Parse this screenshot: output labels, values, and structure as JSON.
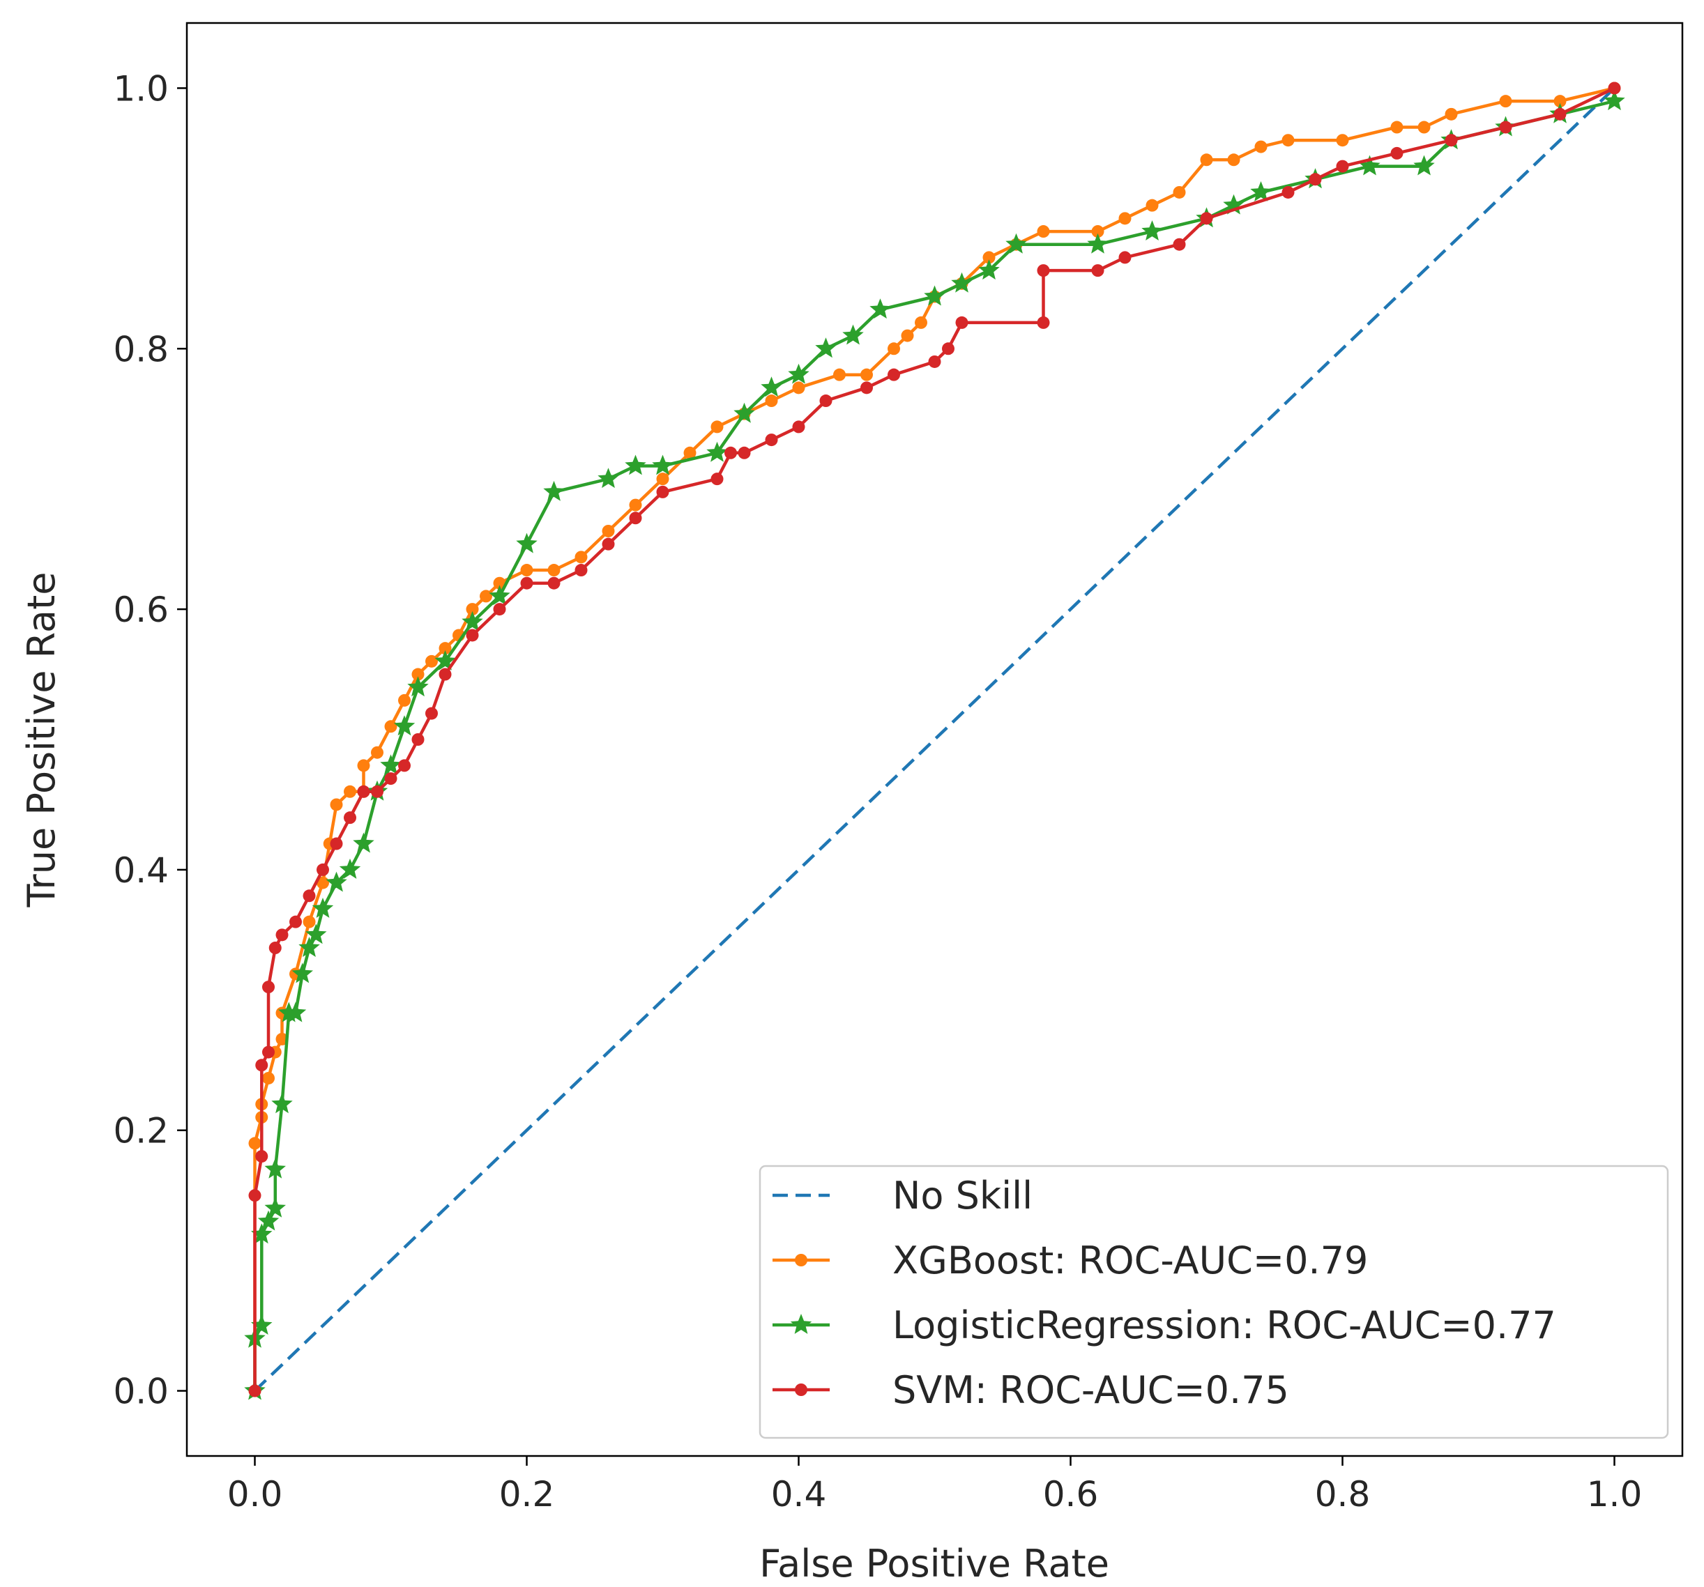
{
  "chart_data": {
    "type": "line",
    "title": "",
    "xlabel": "False Positive Rate",
    "ylabel": "True Positive Rate",
    "xlim": [
      -0.05,
      1.05
    ],
    "ylim": [
      -0.05,
      1.05
    ],
    "xticks": [
      0.0,
      0.2,
      0.4,
      0.6,
      0.8,
      1.0
    ],
    "xtick_labels": [
      "0.0",
      "0.2",
      "0.4",
      "0.6",
      "0.8",
      "1.0"
    ],
    "yticks": [
      0.0,
      0.2,
      0.4,
      0.6,
      0.8,
      1.0
    ],
    "ytick_labels": [
      "0.0",
      "0.2",
      "0.4",
      "0.6",
      "0.8",
      "1.0"
    ],
    "legend_position": "lower-right",
    "series": [
      {
        "name": "No Skill",
        "color": "#1f77b4",
        "style": "dashed",
        "marker": "none",
        "x": [
          0,
          1
        ],
        "y": [
          0,
          1
        ]
      },
      {
        "name": "XGBoost: ROC-AUC=0.79",
        "color": "#ff7f0e",
        "style": "solid",
        "marker": "dot",
        "x": [
          0,
          0,
          0.005,
          0.005,
          0.01,
          0.015,
          0.02,
          0.02,
          0.03,
          0.04,
          0.05,
          0.055,
          0.06,
          0.07,
          0.08,
          0.08,
          0.09,
          0.1,
          0.11,
          0.12,
          0.13,
          0.14,
          0.15,
          0.16,
          0.17,
          0.18,
          0.2,
          0.22,
          0.24,
          0.26,
          0.28,
          0.3,
          0.32,
          0.34,
          0.36,
          0.38,
          0.4,
          0.43,
          0.45,
          0.47,
          0.48,
          0.49,
          0.5,
          0.52,
          0.54,
          0.56,
          0.58,
          0.62,
          0.64,
          0.66,
          0.68,
          0.7,
          0.72,
          0.74,
          0.76,
          0.8,
          0.84,
          0.86,
          0.88,
          0.92,
          0.96,
          1.0
        ],
        "y": [
          0,
          0.19,
          0.21,
          0.22,
          0.24,
          0.26,
          0.27,
          0.29,
          0.32,
          0.36,
          0.39,
          0.42,
          0.45,
          0.46,
          0.46,
          0.48,
          0.49,
          0.51,
          0.53,
          0.55,
          0.56,
          0.57,
          0.58,
          0.6,
          0.61,
          0.62,
          0.63,
          0.63,
          0.64,
          0.66,
          0.68,
          0.7,
          0.72,
          0.74,
          0.75,
          0.76,
          0.77,
          0.78,
          0.78,
          0.8,
          0.81,
          0.82,
          0.84,
          0.85,
          0.87,
          0.88,
          0.89,
          0.89,
          0.9,
          0.91,
          0.92,
          0.945,
          0.945,
          0.955,
          0.96,
          0.96,
          0.97,
          0.97,
          0.98,
          0.99,
          0.99,
          1.0
        ]
      },
      {
        "name": "LogisticRegression: ROC-AUC=0.77",
        "color": "#2ca02c",
        "style": "solid",
        "marker": "star",
        "x": [
          0,
          0,
          0.005,
          0.005,
          0.01,
          0.015,
          0.015,
          0.02,
          0.025,
          0.03,
          0.035,
          0.04,
          0.045,
          0.05,
          0.06,
          0.07,
          0.08,
          0.09,
          0.1,
          0.11,
          0.12,
          0.14,
          0.16,
          0.18,
          0.2,
          0.22,
          0.26,
          0.28,
          0.3,
          0.34,
          0.36,
          0.38,
          0.4,
          0.42,
          0.44,
          0.46,
          0.5,
          0.52,
          0.54,
          0.56,
          0.62,
          0.66,
          0.7,
          0.72,
          0.74,
          0.78,
          0.82,
          0.86,
          0.88,
          0.92,
          0.96,
          1.0
        ],
        "y": [
          0,
          0.04,
          0.05,
          0.12,
          0.13,
          0.14,
          0.17,
          0.22,
          0.29,
          0.29,
          0.32,
          0.34,
          0.35,
          0.37,
          0.39,
          0.4,
          0.42,
          0.46,
          0.48,
          0.51,
          0.54,
          0.56,
          0.59,
          0.61,
          0.65,
          0.69,
          0.7,
          0.71,
          0.71,
          0.72,
          0.75,
          0.77,
          0.78,
          0.8,
          0.81,
          0.83,
          0.84,
          0.85,
          0.86,
          0.88,
          0.88,
          0.89,
          0.9,
          0.91,
          0.92,
          0.93,
          0.94,
          0.94,
          0.96,
          0.97,
          0.98,
          0.99
        ]
      },
      {
        "name": "SVM: ROC-AUC=0.75",
        "color": "#d62728",
        "style": "solid",
        "marker": "dot",
        "x": [
          0,
          0,
          0.005,
          0.005,
          0.01,
          0.01,
          0.015,
          0.02,
          0.03,
          0.04,
          0.05,
          0.06,
          0.07,
          0.08,
          0.09,
          0.1,
          0.11,
          0.12,
          0.13,
          0.14,
          0.16,
          0.18,
          0.2,
          0.22,
          0.24,
          0.26,
          0.28,
          0.3,
          0.34,
          0.35,
          0.36,
          0.38,
          0.4,
          0.42,
          0.45,
          0.47,
          0.5,
          0.51,
          0.52,
          0.58,
          0.58,
          0.62,
          0.64,
          0.68,
          0.7,
          0.76,
          0.78,
          0.8,
          0.84,
          0.88,
          0.92,
          0.96,
          1.0
        ],
        "y": [
          0,
          0.15,
          0.18,
          0.25,
          0.26,
          0.31,
          0.34,
          0.35,
          0.36,
          0.38,
          0.4,
          0.42,
          0.44,
          0.46,
          0.46,
          0.47,
          0.48,
          0.5,
          0.52,
          0.55,
          0.58,
          0.6,
          0.62,
          0.62,
          0.63,
          0.65,
          0.67,
          0.69,
          0.7,
          0.72,
          0.72,
          0.73,
          0.74,
          0.76,
          0.77,
          0.78,
          0.79,
          0.8,
          0.82,
          0.82,
          0.86,
          0.86,
          0.87,
          0.88,
          0.9,
          0.92,
          0.93,
          0.94,
          0.95,
          0.96,
          0.97,
          0.98,
          1.0
        ]
      }
    ]
  }
}
